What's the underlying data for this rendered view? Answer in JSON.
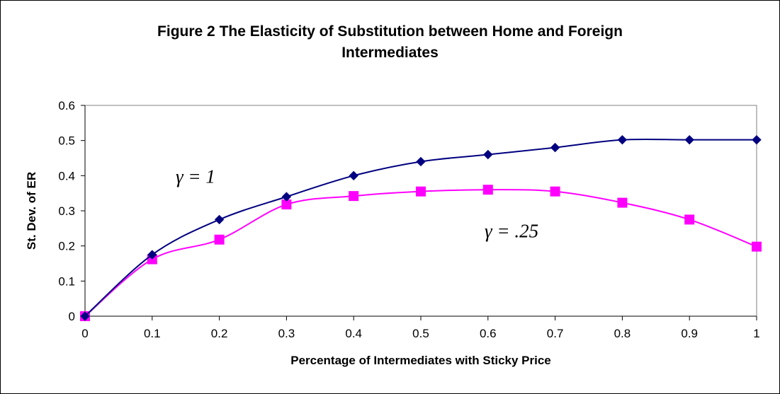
{
  "chart_data": {
    "type": "line",
    "title_lines": [
      "Figure 2 The Elasticity of Substitution between Home and Foreign",
      "Intermediates"
    ],
    "xlabel": "Percentage of Intermediates with Sticky Price",
    "ylabel": "St. Dev. of ER",
    "x": [
      0,
      0.1,
      0.2,
      0.3,
      0.4,
      0.5,
      0.6,
      0.7,
      0.8,
      0.9,
      1
    ],
    "x_tick_labels": [
      "0",
      "0.1",
      "0.2",
      "0.3",
      "0.4",
      "0.5",
      "0.6",
      "0.7",
      "0.8",
      "0.9",
      "1"
    ],
    "y_tick_labels": [
      "0",
      "0.1",
      "0.2",
      "0.3",
      "0.4",
      "0.5",
      "0.6"
    ],
    "xlim": [
      0,
      1
    ],
    "ylim": [
      0,
      0.6
    ],
    "grid": false,
    "smooth": true,
    "series": [
      {
        "name": "γ = 1",
        "marker": "diamond",
        "color": "#000080",
        "values": [
          0,
          0.175,
          0.275,
          0.34,
          0.4,
          0.44,
          0.46,
          0.48,
          0.502,
          0.502,
          0.502
        ]
      },
      {
        "name": "γ = .25",
        "marker": "square",
        "color": "#ff00ff",
        "values": [
          0,
          0.162,
          0.218,
          0.318,
          0.342,
          0.355,
          0.36,
          0.355,
          0.323,
          0.275,
          0.198
        ]
      }
    ],
    "annotations": [
      {
        "text": "γ = 1",
        "x": 0.135,
        "y": 0.4
      },
      {
        "text": "γ = .25",
        "x": 0.595,
        "y": 0.245
      }
    ]
  }
}
